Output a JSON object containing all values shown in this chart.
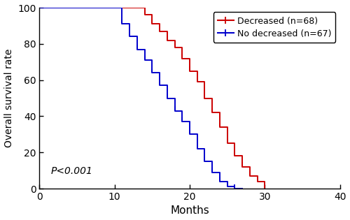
{
  "title": "",
  "xlabel": "Months",
  "ylabel": "Overall survival rate",
  "xlim": [
    0,
    40
  ],
  "ylim": [
    0,
    100
  ],
  "xticks": [
    0,
    10,
    20,
    30,
    40
  ],
  "yticks": [
    0,
    20,
    40,
    60,
    80,
    100
  ],
  "pvalue_text": "P<0.001",
  "pvalue_x": 1.5,
  "pvalue_y": 7,
  "legend_labels": [
    "Decreased (n=68)",
    "No decreased (n=67)"
  ],
  "legend_colors": [
    "#CC0000",
    "#0000CC"
  ],
  "decreased_x": [
    0,
    13,
    14,
    15,
    16,
    17,
    18,
    19,
    20,
    21,
    22,
    23,
    24,
    25,
    26,
    27,
    28,
    29,
    30
  ],
  "decreased_y": [
    100,
    100,
    96,
    91,
    87,
    82,
    78,
    72,
    65,
    59,
    50,
    42,
    34,
    25,
    18,
    12,
    7,
    4,
    0
  ],
  "no_decreased_x": [
    0,
    10,
    11,
    12,
    13,
    14,
    15,
    16,
    17,
    18,
    19,
    20,
    21,
    22,
    23,
    24,
    25,
    26,
    27
  ],
  "no_decreased_y": [
    100,
    100,
    91,
    84,
    77,
    71,
    64,
    57,
    50,
    43,
    37,
    30,
    22,
    15,
    9,
    4,
    1,
    0,
    0
  ],
  "line_color_decreased": "#CC0000",
  "line_color_no_decreased": "#0000CC",
  "linewidth": 1.4,
  "fig_width": 5.0,
  "fig_height": 3.15,
  "dpi": 100
}
